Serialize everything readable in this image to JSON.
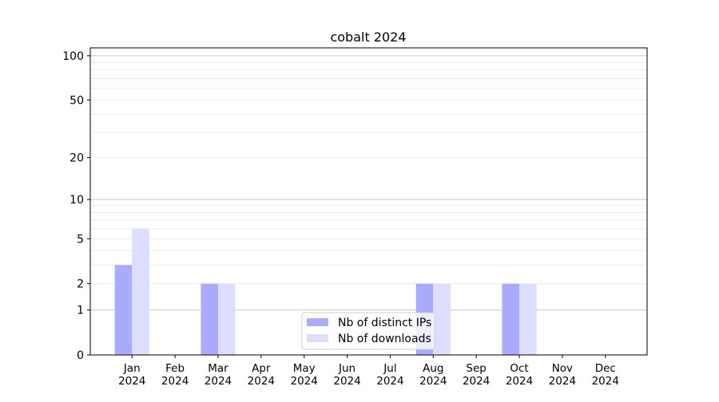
{
  "chart_data": {
    "type": "bar",
    "title": "cobalt 2024",
    "xlabel": "",
    "ylabel": "",
    "y_scale": "symlog (log10(1+y))",
    "ylim": [
      0,
      113
    ],
    "yticks": [
      0,
      1,
      2,
      5,
      10,
      20,
      50,
      100
    ],
    "grid": true,
    "legend_position": "lower center",
    "categories": [
      "Jan\n2024",
      "Feb\n2024",
      "Mar\n2024",
      "Apr\n2024",
      "May\n2024",
      "Jun\n2024",
      "Jul\n2024",
      "Aug\n2024",
      "Sep\n2024",
      "Oct\n2024",
      "Nov\n2024",
      "Dec\n2024"
    ],
    "series": [
      {
        "name": "Nb of distinct IPs",
        "color": "#aaaaff",
        "values": [
          3,
          0,
          2,
          0,
          0,
          0,
          0,
          2,
          0,
          2,
          0,
          0
        ]
      },
      {
        "name": "Nb of downloads",
        "color": "#ddddff",
        "values": [
          6,
          0,
          2,
          0,
          0,
          0,
          0,
          2,
          0,
          2,
          0,
          0
        ]
      }
    ]
  }
}
